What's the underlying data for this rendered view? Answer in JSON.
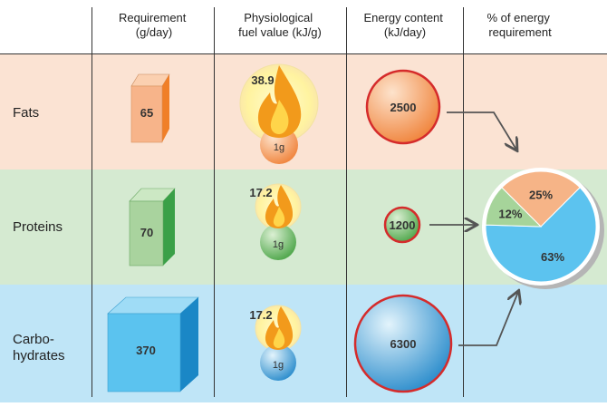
{
  "headers": {
    "requirement": [
      "Requirement",
      "(g/day)"
    ],
    "fuel_value": [
      "Physiological",
      "fuel value (kJ/g)"
    ],
    "energy_content": [
      "Energy content",
      "(kJ/day)"
    ],
    "percent_energy": [
      "% of energy",
      "requirement"
    ]
  },
  "rows": [
    {
      "key": "fats",
      "label_lines": [
        "Fats"
      ],
      "requirement": "65",
      "fuel_value": "38.9",
      "unit_label": "1g",
      "energy": "2500",
      "band_color": "#fbe3d3",
      "box_front": "#f7b48a",
      "box_side": "#f07f28",
      "box_top": "#fbd0b0",
      "sphere_light": "#fde3cc",
      "sphere_dark": "#f0843c"
    },
    {
      "key": "proteins",
      "label_lines": [
        "Proteins"
      ],
      "requirement": "70",
      "fuel_value": "17.2",
      "unit_label": "1g",
      "energy": "1200",
      "band_color": "#d5ead1",
      "box_front": "#a9d39e",
      "box_side": "#3aa047",
      "box_top": "#cce8c4",
      "sphere_light": "#dcf0d4",
      "sphere_dark": "#4ea64a"
    },
    {
      "key": "carbohydrates",
      "label_lines": [
        "Carbo-",
        "hydrates"
      ],
      "requirement": "370",
      "fuel_value": "17.2",
      "unit_label": "1g",
      "energy": "6300",
      "band_color": "#bfe5f7",
      "box_front": "#5bc3ef",
      "box_side": "#1a87c6",
      "box_top": "#9fdcf6",
      "sphere_light": "#e3f4fc",
      "sphere_dark": "#2c8dcc"
    }
  ],
  "pie": {
    "slices": [
      {
        "name": "Fats",
        "percent": 25,
        "label": "25%",
        "color": "#f6b487"
      },
      {
        "name": "Proteins",
        "percent": 12,
        "label": "12%",
        "color": "#a6d49a"
      },
      {
        "name": "Carbohydrates",
        "percent": 63,
        "label": "63%",
        "color": "#5cc3ef"
      }
    ]
  },
  "colors": {
    "grid_line": "#333333",
    "ring_red": "#d52b2b",
    "flame_outer": "#f29a1b",
    "flame_inner": "#ffd54a",
    "glow": "#fff7b0",
    "arrow": "#555555"
  }
}
